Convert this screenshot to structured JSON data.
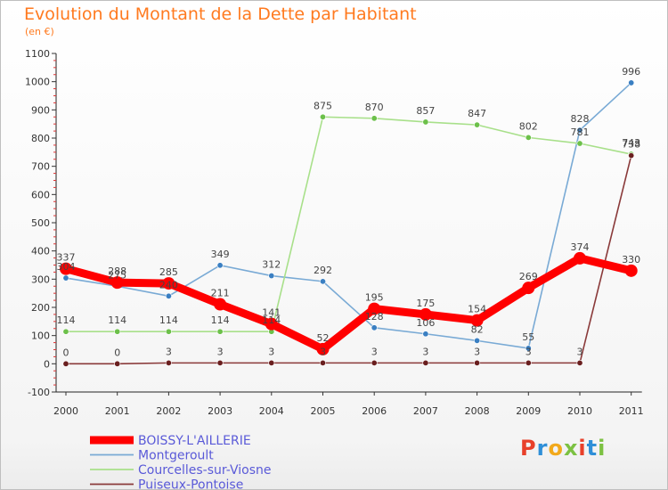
{
  "header": {
    "title": "Evolution du Montant de la Dette par Habitant",
    "unit": "(en €)"
  },
  "logo": {
    "text": "Proxiti",
    "colors": [
      "#e8402a",
      "#2f8fd8",
      "#f2a91b",
      "#7cc142",
      "#e8402a",
      "#2f8fd8",
      "#7cc142"
    ]
  },
  "chart_data": {
    "type": "line",
    "title": "Evolution du Montant de la Dette par Habitant",
    "ylabel": "(en €)",
    "x": [
      "2000",
      "2001",
      "2002",
      "2003",
      "2004",
      "2005",
      "2006",
      "2007",
      "2008",
      "2009",
      "2010",
      "2011"
    ],
    "ylim": [
      -100,
      1100
    ],
    "yticks": [
      -100,
      0,
      100,
      200,
      300,
      400,
      500,
      600,
      700,
      800,
      900,
      1000,
      1100
    ],
    "grid": false,
    "legend_position": "bottom-left",
    "series": [
      {
        "name": "BOISSY-L'AILLERIE",
        "color": "#ff0000",
        "point_color": "#ff0000",
        "bold": true,
        "values": [
          337,
          288,
          285,
          211,
          141,
          52,
          195,
          175,
          154,
          269,
          374,
          330
        ],
        "labels": [
          "337",
          "288",
          "285",
          "211",
          "141",
          "52",
          "195",
          "175",
          "154",
          "269",
          "374",
          "330"
        ]
      },
      {
        "name": "Montgeroult",
        "color": "#79aad5",
        "point_color": "#3a7fc2",
        "bold": false,
        "values": [
          304,
          275,
          240,
          349,
          312,
          292,
          128,
          106,
          82,
          55,
          828,
          996
        ],
        "labels": [
          "304",
          "275",
          "240",
          "349",
          "312",
          "292",
          "128",
          "106",
          "82",
          "55",
          "828",
          "996"
        ]
      },
      {
        "name": "Courcelles-sur-Viosne",
        "color": "#a8e08a",
        "point_color": "#6cc04a",
        "bold": false,
        "values": [
          114,
          114,
          114,
          114,
          114,
          875,
          870,
          857,
          847,
          802,
          781,
          743
        ],
        "labels": [
          "114",
          "114",
          "114",
          "114",
          "114",
          "875",
          "870",
          "857",
          "847",
          "802",
          "781",
          "743"
        ]
      },
      {
        "name": "Puiseux-Pontoise",
        "color": "#8a3a3a",
        "point_color": "#6a1f1f",
        "bold": false,
        "values": [
          0,
          0,
          3,
          3,
          3,
          3,
          3,
          3,
          3,
          3,
          3,
          738
        ],
        "labels": [
          "0",
          "0",
          "3",
          "3",
          "3",
          "3",
          "3",
          "3",
          "3",
          "3",
          "3",
          "738"
        ]
      }
    ]
  }
}
